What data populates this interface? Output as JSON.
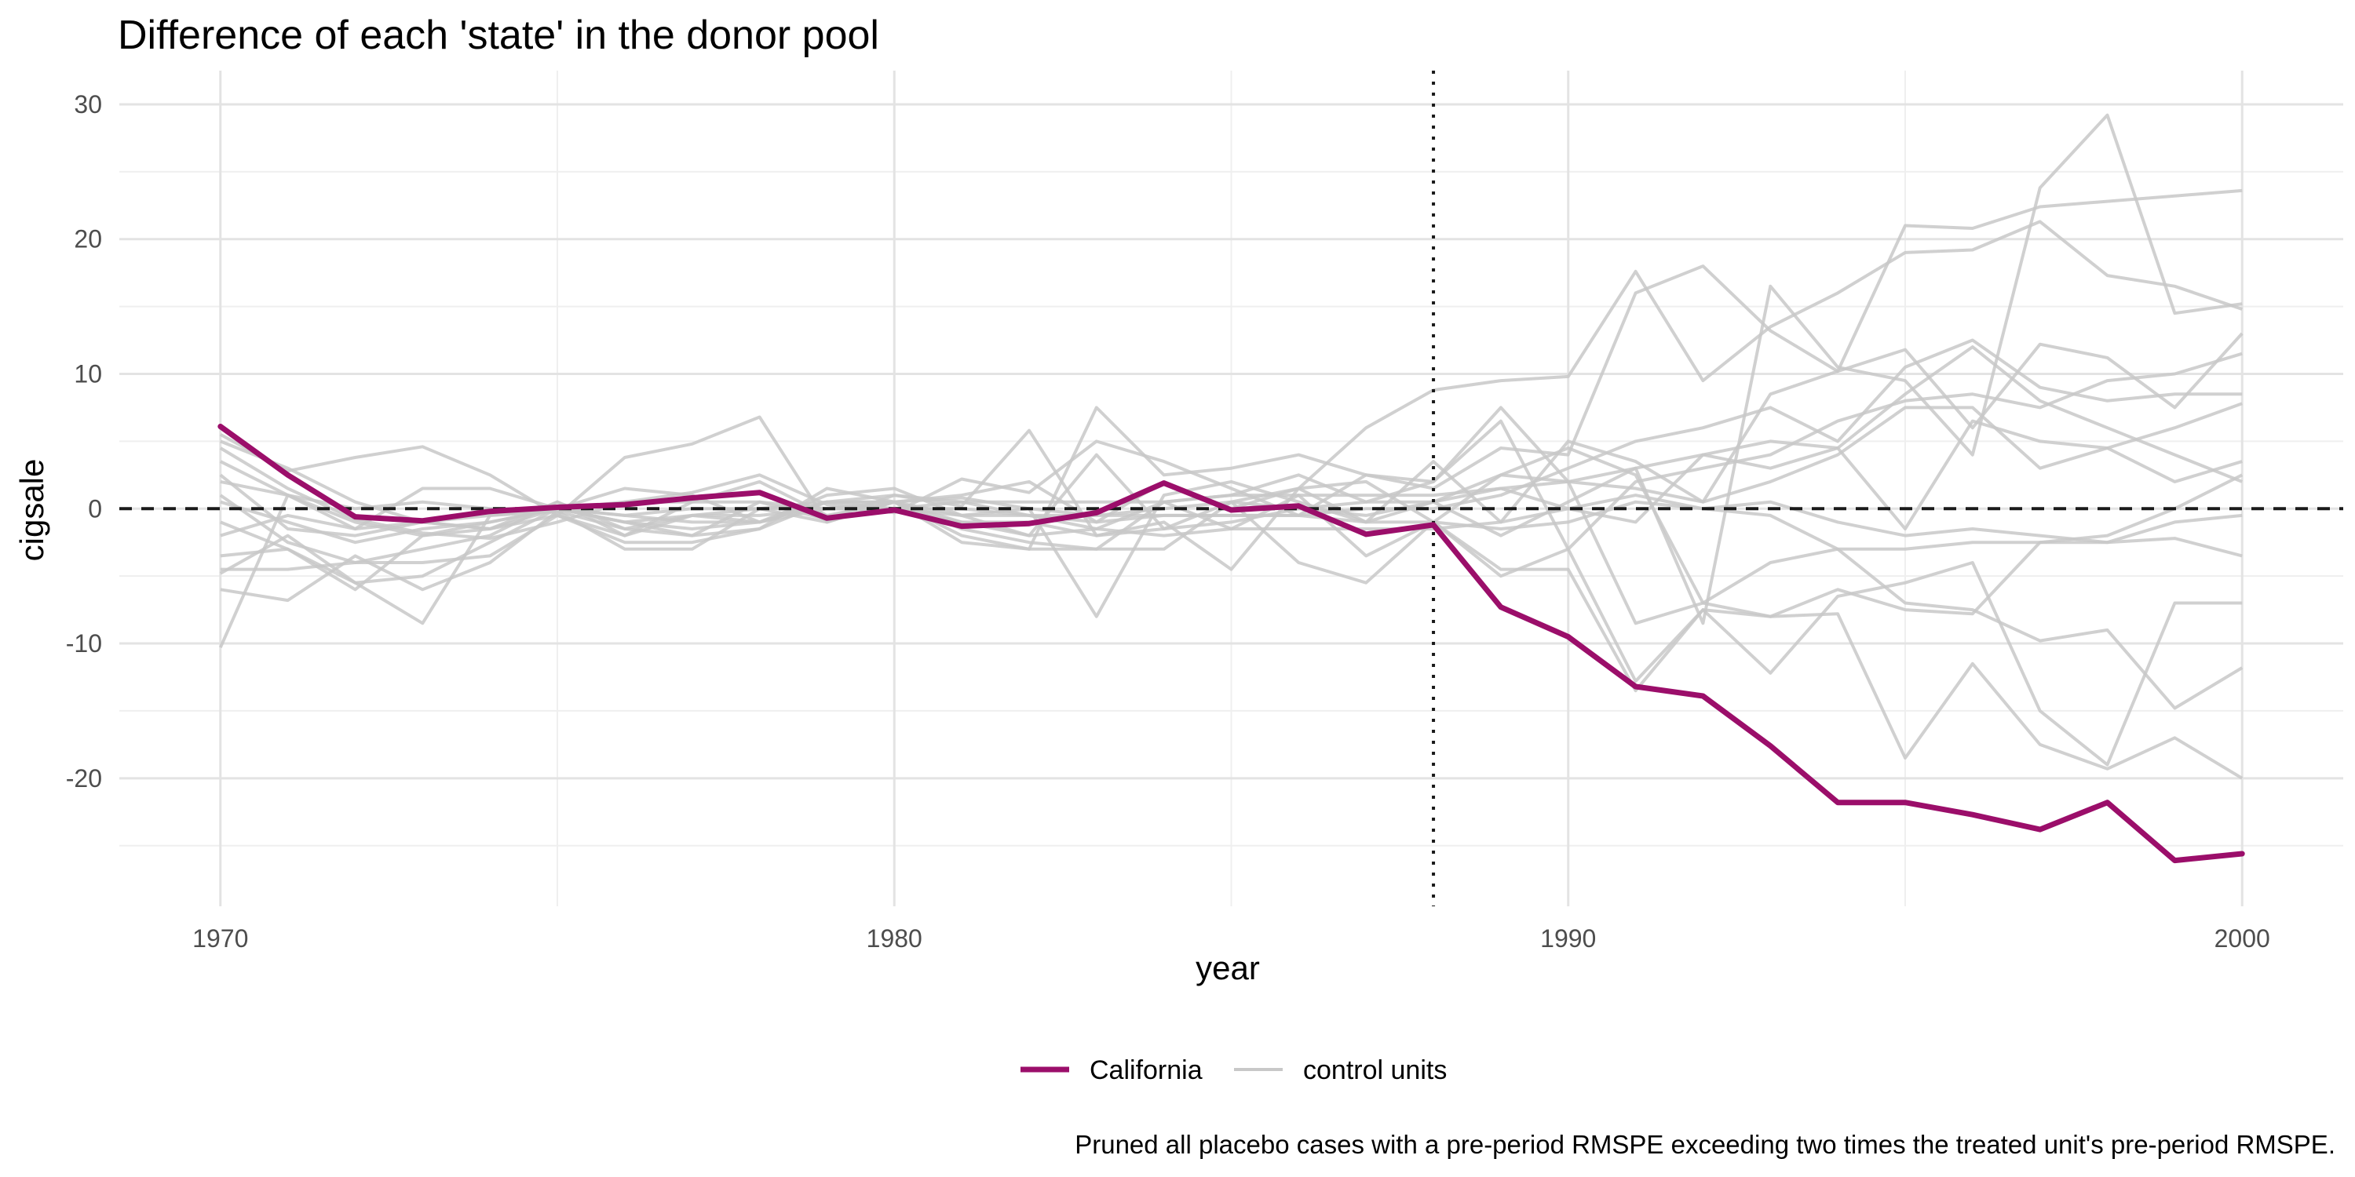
{
  "chart_data": {
    "type": "line",
    "title": "Difference of each 'state' in the donor pool",
    "xlabel": "year",
    "ylabel": "cigsale",
    "xlim": [
      1968.5,
      2001.5
    ],
    "ylim": [
      -29.5,
      32.5
    ],
    "x_ticks": [
      1970,
      1980,
      1990,
      2000
    ],
    "x_tick_labels": [
      "1970",
      "1980",
      "1990",
      "2000"
    ],
    "y_ticks": [
      -20,
      -10,
      0,
      10,
      20,
      30
    ],
    "y_tick_labels": [
      "-20",
      "-10",
      "0",
      "10",
      "20",
      "30"
    ],
    "grid": true,
    "reference_lines": [
      {
        "axis": "y",
        "value": 0,
        "style": "dashed"
      },
      {
        "axis": "x",
        "value": 1988,
        "style": "dotted"
      }
    ],
    "legend": {
      "placement": "bottom",
      "entries": [
        {
          "label": "California",
          "color": "#9b0e6a"
        },
        {
          "label": "control units",
          "color": "#c8c8c8"
        }
      ]
    },
    "caption": "Pruned all placebo cases with a pre-period RMSPE exceeding two times the treated unit's pre-period RMSPE.",
    "x": [
      1970,
      1971,
      1972,
      1973,
      1974,
      1975,
      1976,
      1977,
      1978,
      1979,
      1980,
      1981,
      1982,
      1983,
      1984,
      1985,
      1986,
      1987,
      1988,
      1989,
      1990,
      1991,
      1992,
      1993,
      1994,
      1995,
      1996,
      1997,
      1998,
      1999,
      2000
    ],
    "treated": {
      "name": "California",
      "color": "#9b0e6a",
      "values": [
        6.1,
        2.5,
        -0.6,
        -0.9,
        -0.2,
        0.1,
        0.3,
        0.8,
        1.2,
        -0.7,
        -0.1,
        -1.3,
        -1.1,
        -0.3,
        1.9,
        -0.1,
        0.2,
        -1.9,
        -1.2,
        -7.3,
        -9.5,
        -13.2,
        -13.9,
        -17.6,
        -21.8,
        -21.8,
        -22.7,
        -23.8,
        -21.8,
        -26.1,
        -25.6
      ]
    },
    "controls": {
      "name": "control units",
      "color": "#c8c8c8",
      "series": [
        [
          5.5,
          2.8,
          3.8,
          4.6,
          2.5,
          -0.5,
          3.8,
          4.8,
          6.8,
          -1.0,
          0.5,
          -1.0,
          -2.0,
          4.0,
          -1.5,
          0.5,
          1.5,
          6.0,
          8.8,
          9.5,
          9.8,
          17.6,
          9.5,
          13.5,
          16.0,
          19.0,
          19.2,
          21.3,
          17.3,
          16.5,
          14.8
        ],
        [
          4.5,
          1.5,
          -0.8,
          -1.8,
          -2.2,
          -1.0,
          0.5,
          1.2,
          2.5,
          0.3,
          -0.3,
          2.2,
          1.2,
          5.0,
          3.5,
          1.5,
          -0.5,
          2.5,
          1.5,
          4.5,
          4.0,
          16.0,
          18.0,
          13.2,
          10.2,
          21.0,
          20.8,
          22.4,
          22.8,
          23.2,
          23.6
        ],
        [
          -4.8,
          -2.0,
          -5.5,
          -8.5,
          -0.5,
          -0.2,
          -1.5,
          -2.0,
          0.5,
          -0.8,
          1.0,
          0.2,
          5.8,
          -2.0,
          -1.0,
          -4.5,
          1.5,
          -1.0,
          0.5,
          -2.0,
          0.5,
          3.0,
          -8.5,
          16.5,
          10.5,
          9.5,
          4.0,
          23.8,
          29.2,
          14.5,
          15.2
        ],
        [
          1.0,
          -2.5,
          -4.0,
          -3.0,
          -2.0,
          0.5,
          -1.5,
          -0.5,
          -1.0,
          0.5,
          0.5,
          0.8,
          0.0,
          -8.0,
          1.0,
          2.0,
          0.5,
          -1.0,
          3.5,
          -1.0,
          5.0,
          3.5,
          0.5,
          8.5,
          10.2,
          11.8,
          6.0,
          12.2,
          11.2,
          7.5,
          13.0
        ],
        [
          -1.0,
          -3.0,
          -5.5,
          -5.0,
          -2.5,
          0.0,
          -1.0,
          -2.0,
          -1.5,
          1.5,
          0.5,
          -2.0,
          -3.0,
          7.5,
          2.5,
          3.0,
          4.0,
          2.5,
          2.0,
          6.5,
          -3.0,
          2.0,
          3.0,
          4.0,
          6.5,
          8.0,
          8.5,
          7.5,
          9.5,
          10.0,
          11.5
        ],
        [
          -10.3,
          1.0,
          -1.5,
          1.5,
          1.5,
          0.0,
          1.5,
          1.0,
          -1.0,
          1.0,
          1.5,
          -0.5,
          -2.0,
          -1.5,
          -2.0,
          -1.5,
          1.0,
          -3.5,
          -1.0,
          2.5,
          4.5,
          2.5,
          -7.0,
          -8.0,
          -7.8,
          -18.5,
          -11.5,
          -17.5,
          -19.3,
          -17.0,
          -20.0
        ],
        [
          -6.0,
          -6.8,
          -3.5,
          -6.0,
          -4.0,
          -0.2,
          -3.0,
          -3.0,
          0.0,
          -1.0,
          0.5,
          -2.5,
          -3.0,
          -3.0,
          -3.0,
          0.5,
          -4.0,
          -5.5,
          -1.0,
          -4.5,
          -4.5,
          -13.5,
          -7.5,
          -12.2,
          -6.5,
          -5.5,
          -4.0,
          -15.0,
          -19.0,
          -7.0,
          -7.0
        ],
        [
          5.0,
          3.0,
          0.5,
          -1.0,
          -1.5,
          -0.5,
          -2.0,
          -0.5,
          0.0,
          0.5,
          1.0,
          0.5,
          -0.5,
          -1.5,
          0.5,
          1.0,
          2.5,
          0.5,
          2.0,
          7.5,
          2.0,
          -8.5,
          -7.0,
          -4.0,
          -3.0,
          -7.0,
          -7.5,
          -9.8,
          -9.0,
          -14.8,
          -11.8
        ],
        [
          -3.5,
          -3.0,
          -6.0,
          -2.0,
          -1.5,
          0.5,
          -2.0,
          0.5,
          2.0,
          -0.5,
          0.5,
          1.0,
          2.0,
          -1.0,
          2.0,
          0.0,
          1.5,
          2.0,
          -1.0,
          -5.0,
          -3.0,
          -12.8,
          -7.5,
          -8.0,
          -6.0,
          -7.5,
          -7.8,
          -2.5,
          -2.5,
          -2.2,
          -3.5
        ],
        [
          -4.5,
          -4.5,
          -4.0,
          -4.0,
          -3.5,
          -0.5,
          -2.5,
          -2.5,
          -1.5,
          0.5,
          0.5,
          -1.5,
          -2.5,
          -3.0,
          0.5,
          -1.5,
          -1.5,
          -1.5,
          -1.5,
          -1.0,
          0.0,
          1.0,
          0.0,
          0.5,
          -1.0,
          -2.0,
          -1.5,
          -2.0,
          -2.5,
          -1.0,
          -0.5
        ],
        [
          3.5,
          1.0,
          -1.0,
          -2.0,
          -1.0,
          0.0,
          -0.5,
          -1.0,
          -1.0,
          0.0,
          0.0,
          -0.5,
          -0.5,
          -1.0,
          -0.5,
          -0.5,
          -0.5,
          -1.0,
          -1.0,
          -1.5,
          -1.0,
          0.5,
          0.0,
          -0.5,
          -3.0,
          -3.0,
          -2.5,
          -2.5,
          -2.0,
          0.0,
          2.5
        ],
        [
          2.5,
          -1.5,
          -2.0,
          -1.0,
          -1.5,
          0.0,
          -1.0,
          -1.5,
          -1.0,
          0.5,
          0.0,
          -1.0,
          -1.0,
          -2.0,
          -1.5,
          -1.0,
          0.0,
          -0.5,
          0.5,
          1.5,
          0.0,
          -1.0,
          4.0,
          3.0,
          4.5,
          -1.5,
          6.5,
          5.0,
          4.5,
          2.0,
          3.5
        ],
        [
          0.5,
          -1.0,
          -2.5,
          -1.5,
          -1.0,
          0.0,
          -1.0,
          -0.5,
          -0.5,
          0.0,
          0.5,
          -0.5,
          0.0,
          -0.5,
          0.0,
          0.5,
          0.0,
          0.5,
          0.5,
          2.5,
          2.0,
          1.5,
          0.5,
          2.0,
          4.0,
          7.5,
          7.5,
          3.0,
          4.5,
          6.0,
          7.8
        ],
        [
          2.0,
          1.0,
          0.0,
          0.5,
          0.0,
          0.0,
          0.5,
          0.5,
          0.5,
          0.0,
          0.0,
          0.5,
          0.5,
          0.5,
          0.5,
          1.0,
          1.0,
          1.0,
          1.0,
          1.5,
          2.0,
          3.0,
          4.0,
          5.0,
          4.5,
          8.5,
          12.0,
          8.0,
          6.0,
          4.0,
          2.0
        ],
        [
          -2.0,
          -0.5,
          -1.5,
          -1.0,
          -0.5,
          0.0,
          -0.5,
          0.0,
          0.0,
          0.0,
          0.0,
          0.0,
          -0.5,
          -0.5,
          -0.5,
          -0.5,
          -0.5,
          0.0,
          0.0,
          1.0,
          3.0,
          5.0,
          6.0,
          7.5,
          5.0,
          10.5,
          12.5,
          9.0,
          8.0,
          8.5,
          8.5
        ]
      ]
    }
  }
}
